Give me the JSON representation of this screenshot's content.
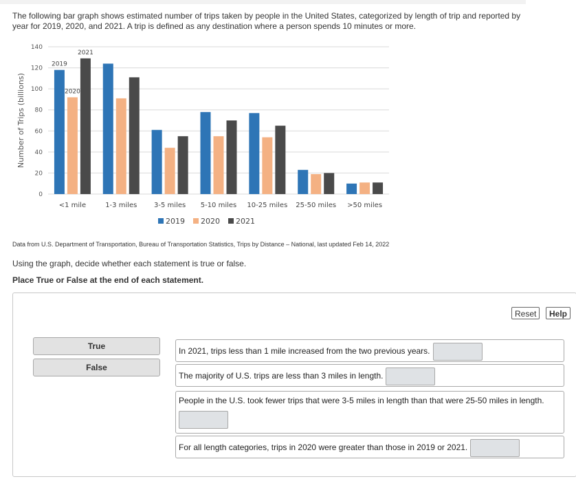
{
  "intro_text": "The following bar graph shows estimated number of trips taken by people in the United States, categorized by length of trip and reported by year for 2019, 2020, and 2021. A trip is defined as any destination where a person spends 10 minutes or more.",
  "chart_data": {
    "type": "bar",
    "ylabel": "Number of Trips (billions)",
    "ylim": [
      0,
      140
    ],
    "yticks": [
      0,
      20,
      40,
      60,
      80,
      100,
      120,
      140
    ],
    "categories": [
      "<1 mile",
      "1-3 miles",
      "3-5 miles",
      "5-10 miles",
      "10-25 miles",
      "25-50 miles",
      ">50 miles"
    ],
    "series": [
      {
        "name": "2019",
        "color": "#2e75b6",
        "values": [
          118,
          124,
          61,
          78,
          77,
          23,
          10
        ]
      },
      {
        "name": "2020",
        "color": "#f4b183",
        "values": [
          92,
          91,
          44,
          55,
          54,
          19,
          11
        ]
      },
      {
        "name": "2021",
        "color": "#4a4a4a",
        "values": [
          129,
          111,
          55,
          70,
          65,
          20,
          11
        ]
      }
    ],
    "annotations": [
      {
        "text": "2019",
        "series": 0,
        "category": 0
      },
      {
        "text": "2020",
        "series": 1,
        "category": 0
      },
      {
        "text": "2021",
        "series": 2,
        "category": 0
      }
    ],
    "legend_position": "bottom",
    "grid": true
  },
  "source_text": "Data from U.S. Department of Transportation, Bureau of Transportation Statistics, Trips by Distance – National, last updated Feb 14, 2022",
  "instruction_1": "Using the graph, decide whether each statement is true or false.",
  "instruction_2": "Place True or False at the end of each statement.",
  "toolbar": {
    "reset_label": "Reset",
    "help_label": "Help"
  },
  "choices": [
    {
      "label": "True"
    },
    {
      "label": "False"
    }
  ],
  "statements": [
    {
      "text": "In 2021, trips less than 1 mile increased from the two previous years."
    },
    {
      "text": "The majority of U.S. trips are less than 3 miles in length."
    },
    {
      "text": "People in the U.S. took fewer trips that were 3-5 miles in length than that were 25-50 miles in length."
    },
    {
      "text": "For all length categories, trips in 2020 were greater than those in 2019 or 2021."
    }
  ]
}
